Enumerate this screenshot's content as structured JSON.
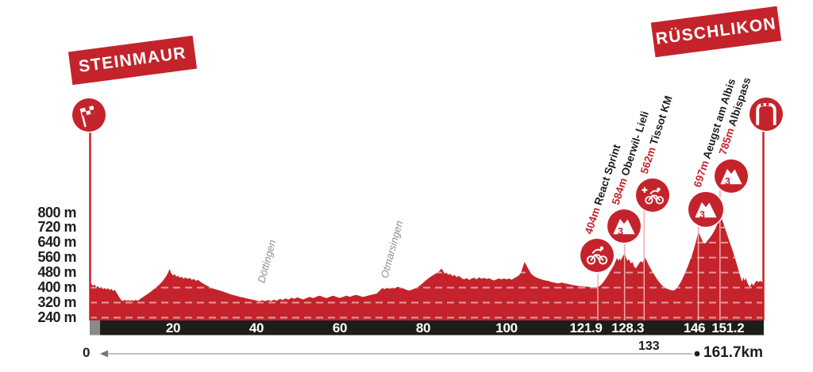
{
  "meta": {
    "stage_start": "STEINMAUR",
    "stage_finish": "RÜSCHLIKON"
  },
  "colors": {
    "red": "#c4232b",
    "bar_black": "#1d1d1b",
    "start_gray": "#8a8a8a",
    "grid_dash": "rgba(255,255,255,0.55)",
    "connector_pink": "#f2aaaa",
    "town_gray": "#8f8f8f",
    "measure_gray": "#a8a8a8",
    "white": "#ffffff"
  },
  "chart_data": {
    "type": "area",
    "title": "Stage elevation profile Steinmaur - Rüschlikon",
    "x_unit": "km",
    "y_unit": "m",
    "x_range": [
      0,
      161.7
    ],
    "y_ticks": [
      240,
      320,
      400,
      480,
      560,
      640,
      720,
      800
    ],
    "y_tick_suffix": " m",
    "x_bar_ticks": [
      "20",
      "40",
      "60",
      "80",
      "100",
      "121.9",
      "128.3",
      "146",
      "151.2"
    ],
    "x_bar_ticks_km": [
      20,
      40,
      60,
      80,
      100,
      121.9,
      128.3,
      146,
      151.2
    ],
    "x_below_ticks": {
      "start": "0",
      "mid": "133",
      "end": "161.7km"
    },
    "start_icon": "checkered-flag-icon",
    "finish_icon": "finish-arch-icon",
    "waypoints": [
      {
        "km": 121.9,
        "elevation": "404m",
        "name": "React Sprint",
        "icon": "sprint-icon"
      },
      {
        "km": 128.3,
        "elevation": "584m",
        "name": "Oberwil- Lieli",
        "icon": "climb-cat3-icon"
      },
      {
        "km": 133,
        "elevation": "562m",
        "name": "Tissot KM",
        "icon": "tissot-km-icon"
      },
      {
        "km": 146,
        "elevation": "697m",
        "name": "Aeugst am Albis",
        "icon": "climb-cat3-icon"
      },
      {
        "km": 151.2,
        "elevation": "785m",
        "name": "Albispass",
        "icon": "climb-cat3-icon"
      }
    ],
    "towns": [
      {
        "name": "Döttingen",
        "km": 43
      },
      {
        "name": "Otmarsingen",
        "km": 72.5
      }
    ],
    "profile": [
      [
        0,
        432
      ],
      [
        0.4,
        420
      ],
      [
        0.8,
        410
      ],
      [
        1.2,
        416
      ],
      [
        1.6,
        402
      ],
      [
        2,
        408
      ],
      [
        2.4,
        396
      ],
      [
        2.8,
        404
      ],
      [
        3.2,
        392
      ],
      [
        3.6,
        400
      ],
      [
        4,
        390
      ],
      [
        4.4,
        398
      ],
      [
        4.8,
        386
      ],
      [
        5.2,
        394
      ],
      [
        5.6,
        382
      ],
      [
        6,
        388
      ],
      [
        6.4,
        374
      ],
      [
        6.8,
        360
      ],
      [
        7.2,
        345
      ],
      [
        7.6,
        333
      ],
      [
        8,
        328
      ],
      [
        8.4,
        336
      ],
      [
        8.8,
        329
      ],
      [
        9.2,
        335
      ],
      [
        9.6,
        328
      ],
      [
        10,
        334
      ],
      [
        10.5,
        329
      ],
      [
        11,
        335
      ],
      [
        11.5,
        330
      ],
      [
        12,
        338
      ],
      [
        12.8,
        350
      ],
      [
        13.6,
        362
      ],
      [
        14.4,
        374
      ],
      [
        15.2,
        388
      ],
      [
        16,
        402
      ],
      [
        16.8,
        418
      ],
      [
        17.6,
        438
      ],
      [
        18.4,
        462
      ],
      [
        18.9,
        485
      ],
      [
        19.2,
        500
      ],
      [
        19.5,
        478
      ],
      [
        20,
        465
      ],
      [
        20.4,
        471
      ],
      [
        20.8,
        458
      ],
      [
        21.2,
        464
      ],
      [
        21.6,
        452
      ],
      [
        22,
        458
      ],
      [
        22.5,
        448
      ],
      [
        23,
        455
      ],
      [
        23.5,
        446
      ],
      [
        24,
        452
      ],
      [
        24.5,
        441
      ],
      [
        25,
        446
      ],
      [
        25.5,
        436
      ],
      [
        26,
        441
      ],
      [
        26.6,
        430
      ],
      [
        27.2,
        422
      ],
      [
        27.8,
        414
      ],
      [
        28.4,
        407
      ],
      [
        29,
        400
      ],
      [
        30,
        392
      ],
      [
        31,
        386
      ],
      [
        32,
        379
      ],
      [
        33,
        371
      ],
      [
        34,
        363
      ],
      [
        35,
        357
      ],
      [
        36,
        351
      ],
      [
        37,
        346
      ],
      [
        38,
        341
      ],
      [
        39,
        336
      ],
      [
        40,
        331
      ],
      [
        40.7,
        327
      ],
      [
        41.4,
        333
      ],
      [
        42.1,
        328
      ],
      [
        42.8,
        334
      ],
      [
        43.5,
        328
      ],
      [
        44.2,
        336
      ],
      [
        44.9,
        330
      ],
      [
        45.6,
        340
      ],
      [
        46.3,
        334
      ],
      [
        47,
        342
      ],
      [
        47.7,
        336
      ],
      [
        48.4,
        346
      ],
      [
        49.1,
        340
      ],
      [
        49.8,
        348
      ],
      [
        50.5,
        342
      ],
      [
        51.2,
        337
      ],
      [
        52,
        344
      ],
      [
        52.8,
        350
      ],
      [
        53.6,
        344
      ],
      [
        54.4,
        352
      ],
      [
        55.2,
        357
      ],
      [
        56,
        350
      ],
      [
        56.8,
        344
      ],
      [
        57.6,
        351
      ],
      [
        58.4,
        357
      ],
      [
        59.2,
        350
      ],
      [
        60,
        345
      ],
      [
        60.8,
        351
      ],
      [
        61.6,
        357
      ],
      [
        62.4,
        351
      ],
      [
        63.2,
        357
      ],
      [
        64,
        361
      ],
      [
        64.8,
        355
      ],
      [
        65.6,
        350
      ],
      [
        66.4,
        355
      ],
      [
        67.2,
        360
      ],
      [
        68,
        364
      ],
      [
        68.8,
        368
      ],
      [
        69.6,
        384
      ],
      [
        70.2,
        398
      ],
      [
        70.8,
        392
      ],
      [
        71.4,
        399
      ],
      [
        72,
        394
      ],
      [
        72.6,
        401
      ],
      [
        73.2,
        396
      ],
      [
        73.8,
        404
      ],
      [
        74.4,
        402
      ],
      [
        75,
        398
      ],
      [
        75.8,
        390
      ],
      [
        76.6,
        384
      ],
      [
        77.4,
        390
      ],
      [
        78.2,
        398
      ],
      [
        79,
        408
      ],
      [
        79.8,
        422
      ],
      [
        80.6,
        438
      ],
      [
        81.4,
        452
      ],
      [
        82.2,
        464
      ],
      [
        83,
        475
      ],
      [
        83.8,
        487
      ],
      [
        84.4,
        502
      ],
      [
        84.8,
        489
      ],
      [
        85.2,
        474
      ],
      [
        85.6,
        480
      ],
      [
        86,
        468
      ],
      [
        86.5,
        473
      ],
      [
        87,
        461
      ],
      [
        87.5,
        468
      ],
      [
        88,
        456
      ],
      [
        88.6,
        463
      ],
      [
        89.2,
        450
      ],
      [
        89.8,
        444
      ],
      [
        90.4,
        451
      ],
      [
        91,
        441
      ],
      [
        91.6,
        448
      ],
      [
        92.2,
        453
      ],
      [
        92.8,
        444
      ],
      [
        93.4,
        455
      ],
      [
        94,
        447
      ],
      [
        94.6,
        452
      ],
      [
        95.2,
        446
      ],
      [
        95.8,
        450
      ],
      [
        96.4,
        443
      ],
      [
        97,
        438
      ],
      [
        97.6,
        444
      ],
      [
        98.2,
        449
      ],
      [
        98.8,
        443
      ],
      [
        99.4,
        449
      ],
      [
        100,
        444
      ],
      [
        100.6,
        449
      ],
      [
        101.2,
        442
      ],
      [
        101.8,
        450
      ],
      [
        102.4,
        457
      ],
      [
        103,
        466
      ],
      [
        103.5,
        482
      ],
      [
        104,
        516
      ],
      [
        104.3,
        536
      ],
      [
        104.7,
        522
      ],
      [
        105,
        509
      ],
      [
        105.4,
        492
      ],
      [
        105.8,
        478
      ],
      [
        106.2,
        468
      ],
      [
        106.6,
        461
      ],
      [
        107,
        456
      ],
      [
        107.6,
        450
      ],
      [
        108.2,
        445
      ],
      [
        108.8,
        441
      ],
      [
        109.4,
        438
      ],
      [
        110,
        435
      ],
      [
        110.8,
        430
      ],
      [
        111.6,
        426
      ],
      [
        112.4,
        423
      ],
      [
        113.2,
        427
      ],
      [
        114,
        423
      ],
      [
        114.8,
        419
      ],
      [
        115.6,
        415
      ],
      [
        116.4,
        412
      ],
      [
        117.2,
        409
      ],
      [
        118,
        407
      ],
      [
        119,
        405
      ],
      [
        120,
        403
      ],
      [
        121,
        402
      ],
      [
        121.9,
        404
      ],
      [
        122.4,
        410
      ],
      [
        122.9,
        421
      ],
      [
        123.5,
        438
      ],
      [
        124.1,
        458
      ],
      [
        124.7,
        480
      ],
      [
        125.3,
        503
      ],
      [
        125.8,
        522
      ],
      [
        126.2,
        543
      ],
      [
        126.5,
        559
      ],
      [
        126.8,
        542
      ],
      [
        127.1,
        556
      ],
      [
        127.4,
        544
      ],
      [
        127.7,
        560
      ],
      [
        128,
        571
      ],
      [
        128.3,
        584
      ],
      [
        128.6,
        566
      ],
      [
        129,
        543
      ],
      [
        129.4,
        552
      ],
      [
        129.8,
        528
      ],
      [
        130.2,
        537
      ],
      [
        130.6,
        512
      ],
      [
        131,
        503
      ],
      [
        131.4,
        516
      ],
      [
        131.8,
        530
      ],
      [
        132.2,
        541
      ],
      [
        132.6,
        533
      ],
      [
        132.9,
        549
      ],
      [
        133.1,
        562
      ],
      [
        133.5,
        549
      ],
      [
        134,
        524
      ],
      [
        134.5,
        503
      ],
      [
        135,
        484
      ],
      [
        135.6,
        462
      ],
      [
        136.2,
        441
      ],
      [
        136.8,
        424
      ],
      [
        137.4,
        410
      ],
      [
        138,
        400
      ],
      [
        138.7,
        392
      ],
      [
        139.4,
        387
      ],
      [
        140,
        384
      ],
      [
        140.5,
        390
      ],
      [
        141,
        402
      ],
      [
        141.5,
        418
      ],
      [
        142,
        438
      ],
      [
        142.6,
        466
      ],
      [
        143.2,
        498
      ],
      [
        143.8,
        532
      ],
      [
        144.4,
        568
      ],
      [
        145,
        610
      ],
      [
        145.5,
        650
      ],
      [
        146,
        697
      ],
      [
        146.3,
        686
      ],
      [
        146.7,
        662
      ],
      [
        147.1,
        645
      ],
      [
        147.5,
        634
      ],
      [
        147.9,
        641
      ],
      [
        148.3,
        653
      ],
      [
        148.8,
        667
      ],
      [
        149.3,
        683
      ],
      [
        149.8,
        702
      ],
      [
        150.3,
        725
      ],
      [
        150.8,
        750
      ],
      [
        151.2,
        785
      ],
      [
        151.6,
        768
      ],
      [
        152,
        742
      ],
      [
        152.5,
        710
      ],
      [
        153,
        676
      ],
      [
        153.5,
        644
      ],
      [
        154,
        612
      ],
      [
        154.5,
        578
      ],
      [
        155,
        542
      ],
      [
        155.4,
        512
      ],
      [
        155.8,
        482
      ],
      [
        156.2,
        450
      ],
      [
        156.5,
        432
      ],
      [
        156.8,
        455
      ],
      [
        157.1,
        437
      ],
      [
        157.4,
        451
      ],
      [
        157.7,
        430
      ],
      [
        158,
        415
      ],
      [
        158.4,
        403
      ],
      [
        158.8,
        424
      ],
      [
        159.2,
        410
      ],
      [
        159.6,
        426
      ],
      [
        160,
        438
      ],
      [
        160.4,
        428
      ],
      [
        160.8,
        437
      ],
      [
        161.2,
        430
      ],
      [
        161.7,
        436
      ]
    ]
  }
}
